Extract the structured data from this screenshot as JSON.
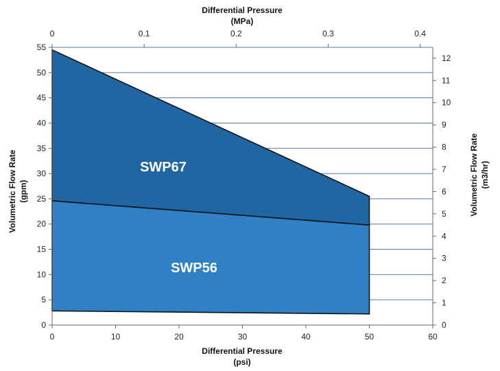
{
  "chart_data": {
    "type": "area",
    "x_axis_bottom": {
      "title_line1": "Differential Pressure",
      "title_line2": "(psi)",
      "min": 0,
      "max": 60,
      "ticks": [
        0,
        10,
        20,
        30,
        40,
        50,
        60
      ]
    },
    "x_axis_top": {
      "title_line1": "Differential Pressure",
      "title_line2": "(MPa)",
      "min": 0,
      "max": 0.4137,
      "ticks": [
        "0",
        "0.1",
        "0.2",
        "0.3",
        "0.4"
      ],
      "tick_values": [
        0,
        0.1,
        0.2,
        0.3,
        0.4
      ]
    },
    "y_axis_left": {
      "title_line1": "Volumetric Flow Rate",
      "title_line2": "(gpm)",
      "min": 0,
      "max": 55,
      "ticks": [
        0,
        5,
        10,
        15,
        20,
        25,
        30,
        35,
        40,
        45,
        50,
        55
      ]
    },
    "y_axis_right": {
      "title_line1": "Volumetric Flow Rate",
      "title_line2": "(m3/hr)",
      "min": 0,
      "max": 12.49,
      "ticks": [
        0,
        1,
        2,
        3,
        4,
        5,
        6,
        7,
        8,
        9,
        10,
        11,
        12
      ]
    },
    "grid": {
      "horizontal": true,
      "color": "#4a79a8"
    },
    "regions": [
      {
        "name": "SWP67",
        "color": "#1f66a3",
        "upper": [
          [
            0,
            54.5
          ],
          [
            50,
            25.5
          ]
        ],
        "lower": [
          [
            0,
            24.6
          ],
          [
            50,
            19.8
          ]
        ]
      },
      {
        "name": "SWP56",
        "color": "#2f80c5",
        "upper": [
          [
            0,
            24.6
          ],
          [
            50,
            19.8
          ]
        ],
        "lower": [
          [
            0,
            2.8
          ],
          [
            50,
            2.2
          ]
        ]
      }
    ]
  }
}
